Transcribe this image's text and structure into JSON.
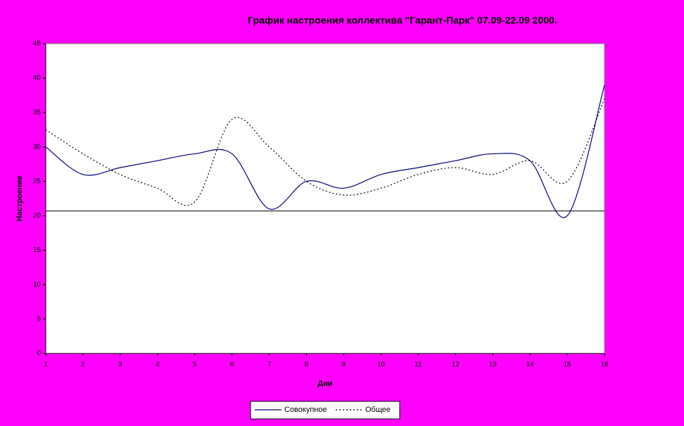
{
  "chart_data": {
    "type": "line",
    "title": "График настроения коллектива \"Гарант-Парк\"  07.09-22.09 2000.",
    "x_label": "Дни",
    "y_label": "Настроение",
    "x": [
      1,
      2,
      3,
      4,
      5,
      6,
      7,
      8,
      9,
      10,
      11,
      12,
      13,
      14,
      15,
      16
    ],
    "xlim": [
      1,
      16
    ],
    "xticks": [
      1,
      2,
      3,
      4,
      5,
      6,
      7,
      8,
      9,
      10,
      11,
      12,
      13,
      14,
      15,
      16
    ],
    "ylim": [
      0,
      45
    ],
    "yticks": [
      0,
      5,
      10,
      15,
      20,
      25,
      30,
      35,
      40,
      45
    ],
    "reference_line": 20.7,
    "legend": "bottom",
    "series": [
      {
        "name": "Совокупное",
        "color": "#000080",
        "dash": "solid",
        "values": [
          30,
          26,
          27,
          28,
          29,
          29,
          21,
          25,
          24,
          26,
          27,
          28,
          29,
          28,
          20,
          39
        ]
      },
      {
        "name": "Общее",
        "color": "#000000",
        "dash": "dotted",
        "values": [
          32.5,
          29,
          26,
          24,
          22,
          34,
          30,
          25,
          23,
          24,
          26,
          27,
          26,
          28,
          25,
          37
        ]
      }
    ]
  }
}
